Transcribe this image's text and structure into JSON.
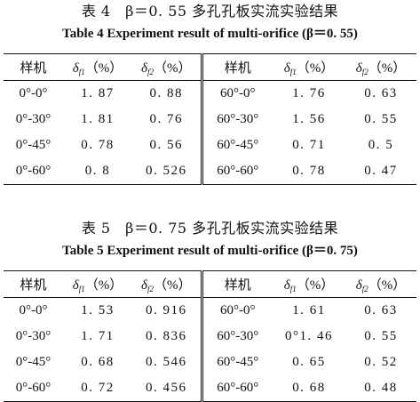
{
  "tables": [
    {
      "caption_cn": "表 4　β＝0. 55 多孔孔板实流实验结果",
      "caption_en": "Table 4    Experiment result of multi-orifice (β＝0. 55)",
      "headers": {
        "sample": "样机",
        "delta1": "δ",
        "delta1_sub": "f1",
        "delta2": "δ",
        "delta2_sub": "f2",
        "unit": "（%）"
      },
      "rows": [
        [
          "0°-0°",
          "1. 87",
          "0. 88",
          "60°-0°",
          "1. 76",
          "0. 63"
        ],
        [
          "0°-30°",
          "1. 81",
          "0. 76",
          "60°-30°",
          "1. 56",
          "0. 55"
        ],
        [
          "0°-45°",
          "0. 78",
          "0. 56",
          "60°-45°",
          "0. 71",
          "0. 5"
        ],
        [
          "0°-60°",
          "0. 8",
          "0. 526",
          "60°-60°",
          "0. 78",
          "0. 47"
        ]
      ]
    },
    {
      "caption_cn": "表 5　β＝0. 75 多孔孔板实流实验结果",
      "caption_en": "Table 5    Experiment result of multi-orifice (β＝0. 75)",
      "headers": {
        "sample": "样机",
        "delta1": "δ",
        "delta1_sub": "f1",
        "delta2": "δ",
        "delta2_sub": "f2",
        "unit": "（%）"
      },
      "rows": [
        [
          "0°-0°",
          "1. 53",
          "0. 916",
          "60°-0°",
          "1. 61",
          "0. 63"
        ],
        [
          "0°-30°",
          "1. 71",
          "0. 836",
          "60°-30°",
          "0°1. 46",
          "0. 55"
        ],
        [
          "0°-45°",
          "0. 68",
          "0. 546",
          "60°-45°",
          "0. 65",
          "0. 52"
        ],
        [
          "0°-60°",
          "0. 72",
          "0. 456",
          "60°-60°",
          "0. 68",
          "0. 48"
        ]
      ]
    }
  ]
}
